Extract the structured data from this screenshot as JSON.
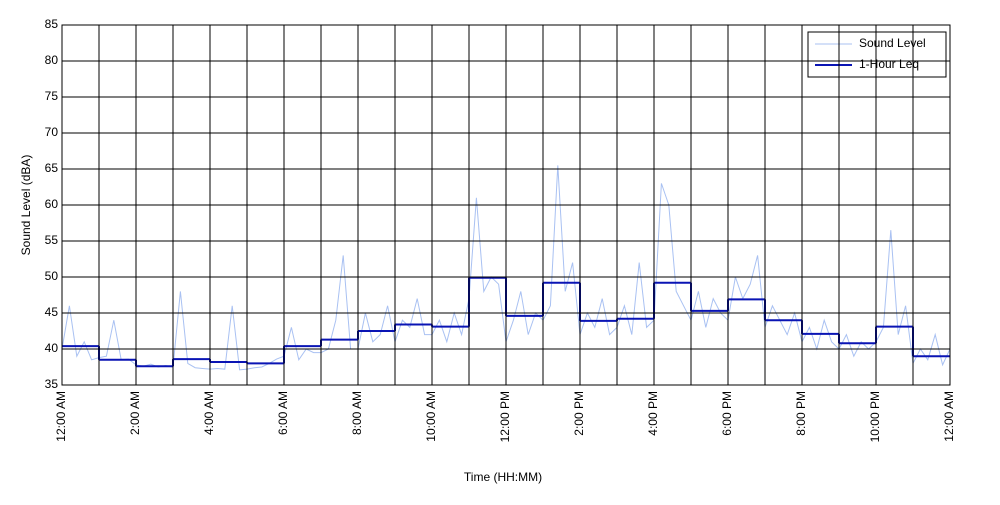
{
  "chart_data": {
    "type": "line",
    "xlabel": "Time (HH:MM)",
    "ylabel": "Sound Level (dBA)",
    "xlim": [
      0,
      24
    ],
    "xticks": [
      {
        "value": 0,
        "label": "12:00 AM"
      },
      {
        "value": 1,
        "label": null
      },
      {
        "value": 2,
        "label": "2:00 AM"
      },
      {
        "value": 3,
        "label": null
      },
      {
        "value": 4,
        "label": "4:00 AM"
      },
      {
        "value": 5,
        "label": null
      },
      {
        "value": 6,
        "label": "6:00 AM"
      },
      {
        "value": 7,
        "label": null
      },
      {
        "value": 8,
        "label": "8:00 AM"
      },
      {
        "value": 9,
        "label": null
      },
      {
        "value": 10,
        "label": "10:00 AM"
      },
      {
        "value": 11,
        "label": null
      },
      {
        "value": 12,
        "label": "12:00 PM"
      },
      {
        "value": 13,
        "label": null
      },
      {
        "value": 14,
        "label": "2:00 PM"
      },
      {
        "value": 15,
        "label": null
      },
      {
        "value": 16,
        "label": "4:00 PM"
      },
      {
        "value": 17,
        "label": null
      },
      {
        "value": 18,
        "label": "6:00 PM"
      },
      {
        "value": 19,
        "label": null
      },
      {
        "value": 20,
        "label": "8:00 PM"
      },
      {
        "value": 21,
        "label": null
      },
      {
        "value": 22,
        "label": "10:00 PM"
      },
      {
        "value": 23,
        "label": null
      },
      {
        "value": 24,
        "label": "12:00 AM"
      }
    ],
    "ylim": [
      35,
      85
    ],
    "yticks": [
      35,
      40,
      45,
      50,
      55,
      60,
      65,
      70,
      75,
      80,
      85
    ],
    "grid": true,
    "legend": "upper right",
    "series": [
      {
        "name": "Sound Level",
        "color": "#a9c1f2",
        "style": "line",
        "x": [
          0,
          0.2,
          0.4,
          0.6,
          0.8,
          1,
          1.2,
          1.4,
          1.6,
          1.8,
          2,
          2.2,
          2.4,
          2.6,
          2.8,
          3,
          3.2,
          3.4,
          3.6,
          3.8,
          4,
          4.2,
          4.4,
          4.6,
          4.8,
          5,
          5.2,
          5.4,
          5.6,
          5.8,
          6,
          6.2,
          6.4,
          6.6,
          6.8,
          7,
          7.2,
          7.4,
          7.6,
          7.8,
          8,
          8.2,
          8.4,
          8.6,
          8.8,
          9,
          9.2,
          9.4,
          9.6,
          9.8,
          10,
          10.2,
          10.4,
          10.6,
          10.8,
          11,
          11.2,
          11.4,
          11.6,
          11.8,
          12,
          12.2,
          12.4,
          12.6,
          12.8,
          13,
          13.2,
          13.4,
          13.6,
          13.8,
          14,
          14.2,
          14.4,
          14.6,
          14.8,
          15,
          15.2,
          15.4,
          15.6,
          15.8,
          16,
          16.2,
          16.4,
          16.6,
          16.8,
          17,
          17.2,
          17.4,
          17.6,
          17.8,
          18,
          18.2,
          18.4,
          18.6,
          18.8,
          19,
          19.2,
          19.4,
          19.6,
          19.8,
          20,
          20.2,
          20.4,
          20.6,
          20.8,
          21,
          21.2,
          21.4,
          21.6,
          21.8,
          22,
          22.2,
          22.4,
          22.6,
          22.8,
          23,
          23.2,
          23.4,
          23.6,
          23.8,
          24
        ],
        "values": [
          40,
          46,
          39,
          41,
          38.5,
          38.8,
          39,
          44,
          38.5,
          38.6,
          37.8,
          37.6,
          37.9,
          37.5,
          37.7,
          37.5,
          48,
          38,
          37.4,
          37.3,
          37.2,
          37.3,
          37.2,
          46,
          37.1,
          37.2,
          37.4,
          37.5,
          38,
          38.6,
          39,
          43,
          38.5,
          40,
          39.5,
          39.5,
          40,
          44,
          53,
          40,
          40,
          45,
          41,
          42,
          46,
          41,
          44,
          43,
          47,
          42,
          42,
          44,
          41,
          45,
          42,
          47,
          61,
          48,
          50,
          49,
          41,
          44,
          48,
          42,
          45,
          44,
          46,
          65.5,
          48,
          52,
          42,
          45,
          43,
          47,
          42,
          43,
          46,
          42,
          52,
          43,
          44,
          63,
          60,
          48,
          46,
          44,
          48,
          43,
          47,
          45,
          44,
          50,
          47,
          49,
          53,
          43,
          46,
          44,
          42,
          45,
          41,
          43,
          40,
          44,
          41,
          40,
          42,
          39,
          41,
          40,
          41,
          43,
          56.5,
          42,
          46,
          38,
          40,
          38.5,
          42,
          37.8,
          40
        ]
      },
      {
        "name": "1-Hour Leq",
        "color": "#0a14b4",
        "style": "step",
        "x": [
          0,
          1,
          2,
          3,
          4,
          5,
          6,
          7,
          8,
          9,
          10,
          11,
          12,
          13,
          14,
          15,
          16,
          17,
          18,
          19,
          20,
          21,
          22,
          23
        ],
        "values": [
          40.4,
          38.5,
          37.6,
          38.6,
          38.2,
          38.0,
          40.4,
          41.3,
          42.5,
          43.4,
          43.1,
          49.9,
          44.6,
          49.2,
          43.9,
          44.2,
          49.2,
          45.3,
          46.9,
          44.0,
          42.1,
          40.8,
          43.1,
          39.0
        ]
      }
    ]
  }
}
